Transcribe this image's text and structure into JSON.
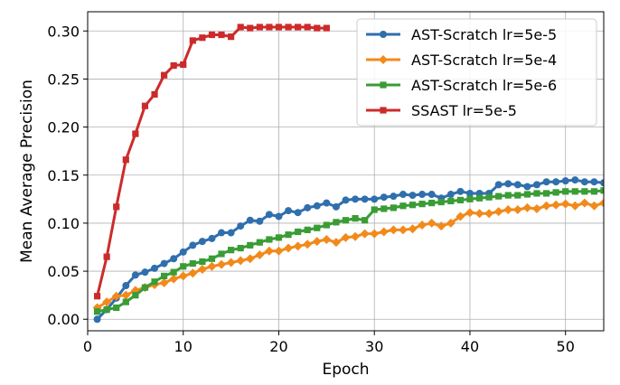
{
  "chart_data": {
    "type": "line",
    "title": "",
    "xlabel": "Epoch",
    "ylabel": "Mean Average Precision",
    "xlim": [
      0,
      54
    ],
    "ylim": [
      -0.012,
      0.32
    ],
    "x_ticks": [
      0,
      10,
      20,
      30,
      40,
      50
    ],
    "y_ticks": [
      0.0,
      0.05,
      0.1,
      0.15,
      0.2,
      0.25,
      0.3
    ],
    "x_tick_labels": [
      "0",
      "10",
      "20",
      "30",
      "40",
      "50"
    ],
    "y_tick_labels": [
      "0.00",
      "0.05",
      "0.10",
      "0.15",
      "0.20",
      "0.25",
      "0.30"
    ],
    "grid": true,
    "legend_position": "top-right",
    "series": [
      {
        "name": "AST-Scratch lr=5e-5",
        "color": "#2f6fad",
        "marker": "circle",
        "x": [
          1,
          2,
          3,
          4,
          5,
          6,
          7,
          8,
          9,
          10,
          11,
          12,
          13,
          14,
          15,
          16,
          17,
          18,
          19,
          20,
          21,
          22,
          23,
          24,
          25,
          26,
          27,
          28,
          29,
          30,
          31,
          32,
          33,
          34,
          35,
          36,
          37,
          38,
          39,
          40,
          41,
          42,
          43,
          44,
          45,
          46,
          47,
          48,
          49,
          50,
          51,
          52,
          53,
          54
        ],
        "y": [
          0.0,
          0.01,
          0.022,
          0.035,
          0.046,
          0.049,
          0.053,
          0.058,
          0.063,
          0.07,
          0.077,
          0.081,
          0.084,
          0.09,
          0.09,
          0.097,
          0.103,
          0.102,
          0.109,
          0.107,
          0.113,
          0.111,
          0.116,
          0.118,
          0.121,
          0.117,
          0.124,
          0.125,
          0.125,
          0.125,
          0.127,
          0.128,
          0.13,
          0.129,
          0.13,
          0.13,
          0.126,
          0.13,
          0.133,
          0.131,
          0.131,
          0.131,
          0.14,
          0.141,
          0.14,
          0.138,
          0.14,
          0.143,
          0.143,
          0.144,
          0.145,
          0.143,
          0.143,
          0.142
        ]
      },
      {
        "name": "AST-Scratch lr=5e-4",
        "color": "#f28a1b",
        "marker": "diamond",
        "x": [
          1,
          2,
          3,
          4,
          5,
          6,
          7,
          8,
          9,
          10,
          11,
          12,
          13,
          14,
          15,
          16,
          17,
          18,
          19,
          20,
          21,
          22,
          23,
          24,
          25,
          26,
          27,
          28,
          29,
          30,
          31,
          32,
          33,
          34,
          35,
          36,
          37,
          38,
          39,
          40,
          41,
          42,
          43,
          44,
          45,
          46,
          47,
          48,
          49,
          50,
          51,
          52,
          53,
          54
        ],
        "y": [
          0.012,
          0.018,
          0.024,
          0.025,
          0.03,
          0.033,
          0.036,
          0.038,
          0.042,
          0.045,
          0.048,
          0.052,
          0.055,
          0.057,
          0.059,
          0.061,
          0.063,
          0.067,
          0.071,
          0.071,
          0.074,
          0.076,
          0.078,
          0.081,
          0.083,
          0.08,
          0.085,
          0.086,
          0.089,
          0.089,
          0.091,
          0.093,
          0.093,
          0.094,
          0.098,
          0.1,
          0.097,
          0.1,
          0.107,
          0.111,
          0.11,
          0.11,
          0.112,
          0.114,
          0.114,
          0.116,
          0.115,
          0.118,
          0.119,
          0.12,
          0.118,
          0.121,
          0.118,
          0.121
        ]
      },
      {
        "name": "AST-Scratch lr=5e-6",
        "color": "#3a9c35",
        "marker": "square",
        "x": [
          1,
          2,
          3,
          4,
          5,
          6,
          7,
          8,
          9,
          10,
          11,
          12,
          13,
          14,
          15,
          16,
          17,
          18,
          19,
          20,
          21,
          22,
          23,
          24,
          25,
          26,
          27,
          28,
          29,
          30,
          31,
          32,
          33,
          34,
          35,
          36,
          37,
          38,
          39,
          40,
          41,
          42,
          43,
          44,
          45,
          46,
          47,
          48,
          49,
          50,
          51,
          52,
          53,
          54
        ],
        "y": [
          0.008,
          0.01,
          0.012,
          0.018,
          0.025,
          0.033,
          0.039,
          0.045,
          0.049,
          0.055,
          0.058,
          0.06,
          0.063,
          0.068,
          0.072,
          0.074,
          0.077,
          0.08,
          0.083,
          0.085,
          0.088,
          0.091,
          0.093,
          0.095,
          0.098,
          0.101,
          0.103,
          0.105,
          0.103,
          0.114,
          0.115,
          0.116,
          0.118,
          0.119,
          0.12,
          0.121,
          0.122,
          0.123,
          0.124,
          0.125,
          0.126,
          0.127,
          0.128,
          0.129,
          0.129,
          0.13,
          0.131,
          0.131,
          0.132,
          0.133,
          0.133,
          0.133,
          0.133,
          0.134
        ]
      },
      {
        "name": "SSAST lr=5e-5",
        "color": "#cc2b2b",
        "marker": "square",
        "x": [
          1,
          2,
          3,
          4,
          5,
          6,
          7,
          8,
          9,
          10,
          11,
          12,
          13,
          14,
          15,
          16,
          17,
          18,
          19,
          20,
          21,
          22,
          23,
          24,
          25
        ],
        "y": [
          0.024,
          0.065,
          0.117,
          0.166,
          0.193,
          0.222,
          0.234,
          0.254,
          0.264,
          0.265,
          0.29,
          0.293,
          0.296,
          0.296,
          0.294,
          0.304,
          0.303,
          0.304,
          0.304,
          0.304,
          0.304,
          0.304,
          0.304,
          0.303,
          0.303
        ]
      }
    ]
  }
}
